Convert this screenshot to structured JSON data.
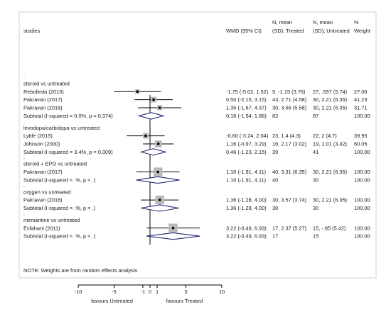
{
  "header": {
    "studies": "studies",
    "wmd": "WMD (95% CI)",
    "treated": [
      "N, mean",
      "(SD); Treated"
    ],
    "untreated": [
      "N, mean",
      "(SD); Untreated"
    ],
    "weight": [
      "%",
      "Weight"
    ]
  },
  "dot_marker": ".",
  "note": "NOTE: Weights are from random effects analysis",
  "chart_data": {
    "type": "forest",
    "x_ticks": [
      "-10",
      "-5",
      "-1",
      "0",
      "1",
      "5",
      "10"
    ],
    "x_tick_values": [
      -10,
      -5,
      -1,
      0,
      1,
      5,
      10
    ],
    "xlim": [
      -10,
      10
    ],
    "null_line": 0,
    "xlabel_left": "favours Untreated",
    "xlabel_right": "favours Treated",
    "groups": [
      {
        "name": "steroid vs untreated",
        "studies": [
          {
            "label": "Rebolleda (2013)",
            "est": -1.75,
            "lo": -5.02,
            "hi": 1.52,
            "ci_text": "-1.75 (-5.02, 1.52)",
            "treated": "9, -1.15 (3.76)",
            "untreated": "27, .597 (5.74)",
            "weight": "27.06",
            "w": 27.06
          },
          {
            "label": "Pakravan (2017)",
            "est": 0.5,
            "lo": -2.15,
            "hi": 3.15,
            "ci_text": "0.50 (-2.15, 3.15)",
            "treated": "43, 2.71 (4.58)",
            "untreated": "30, 2.21 (6.35)",
            "weight": "41.23",
            "w": 41.23
          },
          {
            "label": "Pakravan (2016)",
            "est": 1.35,
            "lo": -1.67,
            "hi": 4.37,
            "ci_text": "1.35 (-1.67, 4.37)",
            "treated": "30, 3.56 (5.58)",
            "untreated": "30, 2.21 (6.35)",
            "weight": "31.71",
            "w": 31.71
          }
        ],
        "subtotal": {
          "label": "Subtotal  (I-squared = 0.0%, p = 0.374)",
          "est": 0.16,
          "lo": -1.54,
          "hi": 1.86,
          "ci_text": "0.16 (-1.54, 1.86)",
          "treated": "82",
          "untreated": "87",
          "weight": "100.00"
        }
      },
      {
        "name": "levodopa/carbidopa vs untreated",
        "studies": [
          {
            "label": "Lyttle (2015)",
            "est": -0.6,
            "lo": -3.24,
            "hi": 2.04,
            "ci_text": "-0.60 (-3.24, 2.04)",
            "treated": "23, 1.4 (4.3)",
            "untreated": "22, 2 (4.7)",
            "weight": "39.95",
            "w": 39.95
          },
          {
            "label": "Johnson (2000)",
            "est": 1.16,
            "lo": -0.97,
            "hi": 3.29,
            "ci_text": "1.16 (-0.97, 3.29)",
            "treated": "16, 2.17 (3.02)",
            "untreated": "19, 1.01 (3.42)",
            "weight": "60.05",
            "w": 60.05
          }
        ],
        "subtotal": {
          "label": "Subtotal  (I-squared = 3.4%, p = 0.309)",
          "est": 0.46,
          "lo": -1.23,
          "hi": 2.15,
          "ci_text": "0.46 (-1.23, 2.15)",
          "treated": "39",
          "untreated": "41",
          "weight": "100.00"
        }
      },
      {
        "name": "steroid + EPO vs untreated",
        "studies": [
          {
            "label": "Pakravan (2017)",
            "est": 1.1,
            "lo": -1.91,
            "hi": 4.11,
            "ci_text": "1.10 (-1.91, 4.11)",
            "treated": "40, 3.31 (6.35)",
            "untreated": "30, 2.21 (6.35)",
            "weight": "100.00",
            "w": 100
          }
        ],
        "subtotal": {
          "label": "Subtotal  (I-squared = .%, p = .)",
          "est": 1.1,
          "lo": -1.91,
          "hi": 4.11,
          "ci_text": "1.10 (-1.91, 4.11)",
          "treated": "40",
          "untreated": "30",
          "weight": "100.00"
        }
      },
      {
        "name": "oxygen vs untreated",
        "studies": [
          {
            "label": "Pakravan (2016)",
            "est": 1.36,
            "lo": -1.28,
            "hi": 4.0,
            "ci_text": "1.36 (-1.28, 4.00)",
            "treated": "30, 3.57 (3.74)",
            "untreated": "30, 2.21 (6.35)",
            "weight": "100.00",
            "w": 100
          }
        ],
        "subtotal": {
          "label": "Subtotal  (I-squared = .%, p = .)",
          "est": 1.36,
          "lo": -1.28,
          "hi": 4.0,
          "ci_text": "1.36 (-1.28, 4.00)",
          "treated": "30",
          "untreated": "30",
          "weight": "100.00"
        }
      },
      {
        "name": "memantine vs untreated",
        "studies": [
          {
            "label": "Esfahani (2011)",
            "est": 3.22,
            "lo": -0.49,
            "hi": 6.93,
            "ci_text": "3.22 (-0.49, 6.93)",
            "treated": "17, 2.37 (5.27)",
            "untreated": "15, -.85 (5.42)",
            "weight": "100.00",
            "w": 100
          }
        ],
        "subtotal": {
          "label": "Subtotal  (I-squared = .%, p = .)",
          "est": 3.22,
          "lo": -0.49,
          "hi": 6.93,
          "ci_text": "3.22 (-0.49, 6.93)",
          "treated": "17",
          "untreated": "15",
          "weight": "100.00"
        }
      }
    ],
    "colors": {
      "ci": "#000000",
      "box": "#b8b8b8",
      "diamond": "#1f2a78",
      "axis": "#000000",
      "frame": "#d0d0d0"
    }
  }
}
